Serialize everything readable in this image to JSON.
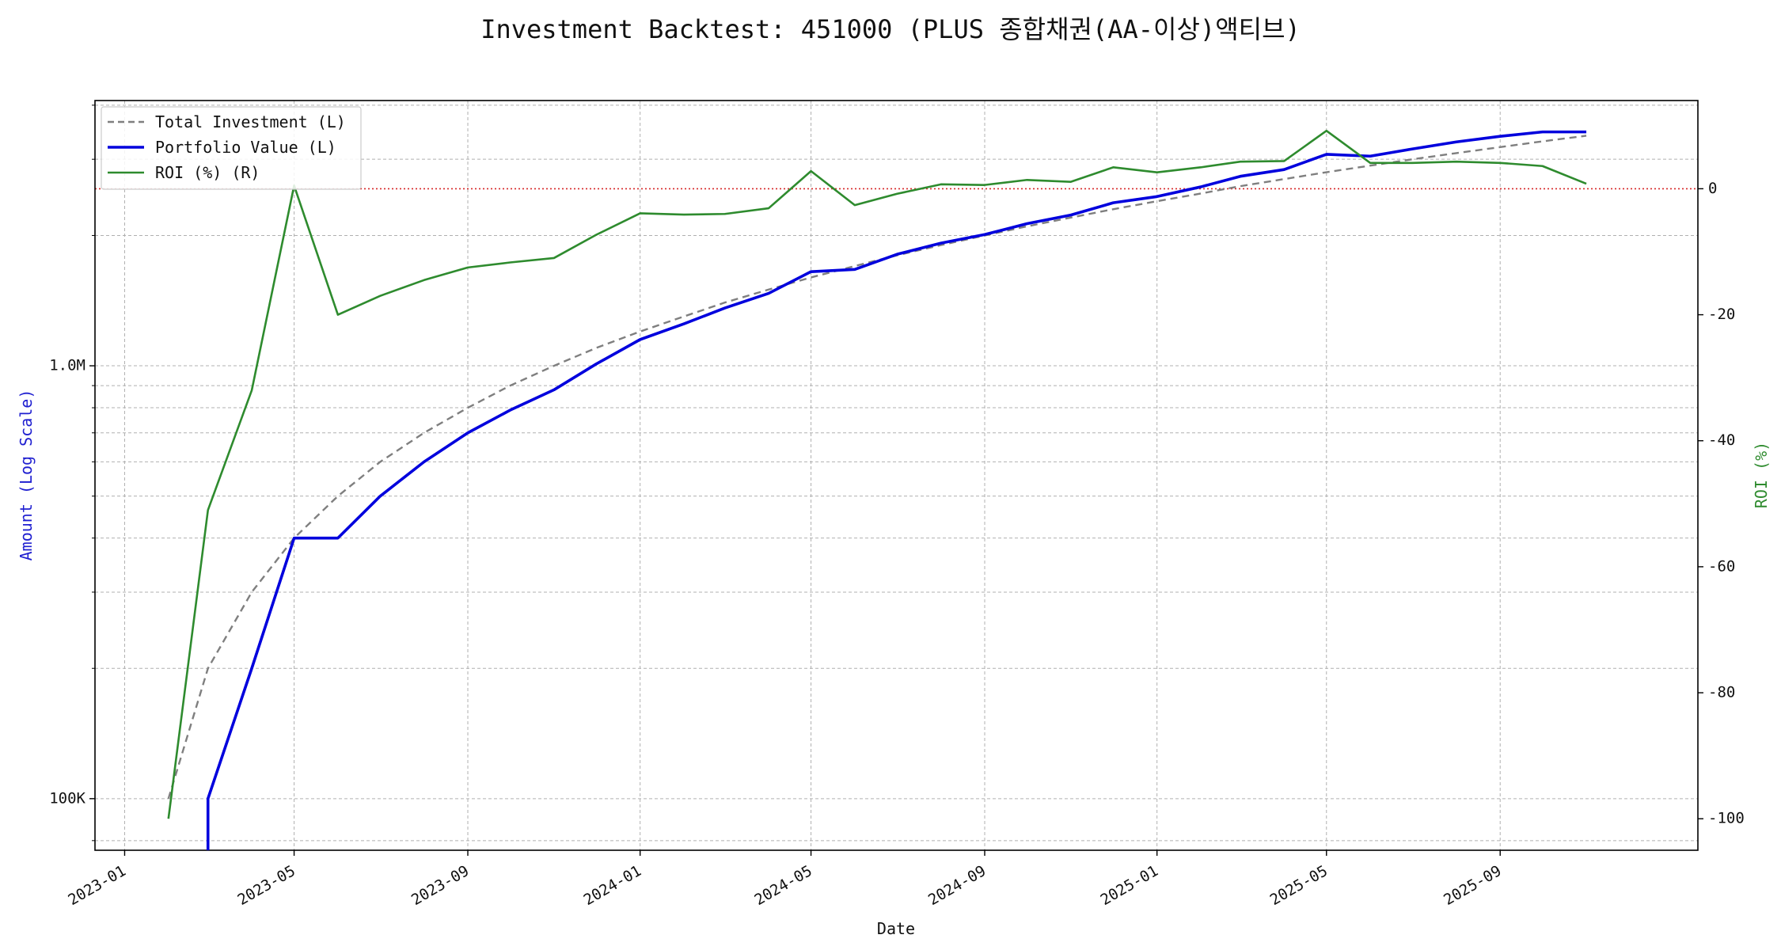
{
  "chart_data": {
    "type": "line",
    "title": "Investment Backtest: 451000 (PLUS 종합채권(AA-이상)액티브)",
    "xlabel": "Date",
    "ylabel_left": "Amount (Log Scale)",
    "ylabel_right": "ROI (%)",
    "left_scale": "log",
    "left_ylim": [
      76000,
      4100000
    ],
    "right_ylim": [
      -105,
      14
    ],
    "xlim": [
      "2022-12-11",
      "2026-01-19"
    ],
    "x_ticks": [
      "2023-01",
      "2023-05",
      "2023-09",
      "2024-01",
      "2024-05",
      "2024-09",
      "2025-01",
      "2025-05",
      "2025-09"
    ],
    "x_tick_dates": [
      "2023-01-01",
      "2023-05-01",
      "2023-09-01",
      "2024-01-01",
      "2024-05-01",
      "2024-09-01",
      "2025-01-01",
      "2025-05-01",
      "2025-09-01"
    ],
    "left_ticks": [
      {
        "value": 100000,
        "label": "100K"
      },
      {
        "value": 1000000,
        "label": "1.0M"
      }
    ],
    "left_minor_ticks": [
      80000,
      200000,
      300000,
      400000,
      500000,
      600000,
      700000,
      800000,
      900000,
      2000000,
      3000000,
      4000000
    ],
    "right_ticks": [
      0,
      -20,
      -40,
      -60,
      -80,
      -100
    ],
    "grid": true,
    "legend_position": "top-left",
    "zero_line": 0,
    "x": [
      "2023-02-01",
      "2023-03-01",
      "2023-04-01",
      "2023-05-01",
      "2023-06-01",
      "2023-07-01",
      "2023-08-01",
      "2023-09-01",
      "2023-10-01",
      "2023-11-01",
      "2023-12-01",
      "2024-01-01",
      "2024-02-01",
      "2024-03-01",
      "2024-04-01",
      "2024-05-01",
      "2024-06-01",
      "2024-07-01",
      "2024-08-01",
      "2024-09-01",
      "2024-10-01",
      "2024-11-01",
      "2024-12-01",
      "2025-01-01",
      "2025-02-01",
      "2025-03-01",
      "2025-04-01",
      "2025-05-01",
      "2025-06-01",
      "2025-07-01",
      "2025-08-01",
      "2025-09-01",
      "2025-10-01",
      "2025-11-01"
    ],
    "series": [
      {
        "name": "Total Investment (L)",
        "axis": "left",
        "color": "#7f7f7f",
        "style": "dashed",
        "values": [
          100000,
          200000,
          300000,
          400000,
          500000,
          600000,
          700000,
          800000,
          900000,
          1000000,
          1100000,
          1200000,
          1300000,
          1400000,
          1500000,
          1600000,
          1700000,
          1800000,
          1900000,
          2000000,
          2100000,
          2200000,
          2300000,
          2400000,
          2500000,
          2600000,
          2700000,
          2800000,
          2900000,
          3000000,
          3100000,
          3200000,
          3300000,
          3400000
        ]
      },
      {
        "name": "Portfolio Value (L)",
        "axis": "left",
        "color": "#0000dd",
        "style": "solid",
        "values": [
          null,
          100000,
          200000,
          400000,
          400000,
          500000,
          600000,
          700000,
          790000,
          880000,
          1010000,
          1150000,
          1250000,
          1360000,
          1470000,
          1650000,
          1670000,
          1810000,
          1920000,
          2010000,
          2130000,
          2230000,
          2380000,
          2460000,
          2590000,
          2740000,
          2840000,
          3080000,
          3050000,
          3170000,
          3290000,
          3390000,
          3470000,
          3470000
        ]
      },
      {
        "name": "ROI (%) (R)",
        "axis": "right",
        "color": "#2e8b2e",
        "style": "solid",
        "values": [
          -100,
          -51,
          -32,
          0.5,
          -20,
          -17,
          -14.5,
          -12.5,
          -11.7,
          -11,
          -7.3,
          -3.9,
          -4.1,
          -4.0,
          -3.1,
          2.8,
          -2.6,
          -0.8,
          0.7,
          0.6,
          1.4,
          1.1,
          3.4,
          2.6,
          3.4,
          4.3,
          4.4,
          9.2,
          4.1,
          4.1,
          4.3,
          4.1,
          3.6,
          0.8
        ]
      }
    ]
  }
}
